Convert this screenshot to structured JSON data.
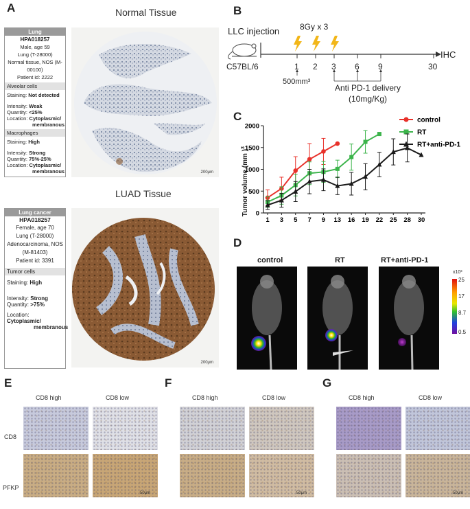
{
  "panels": {
    "a": {
      "letter": "A",
      "normal_title": "Normal Tissue",
      "luad_title": "LUAD Tissue",
      "normal_box": {
        "header": "Lung",
        "antibody": "HPA018257",
        "patient": [
          "Male, age 59",
          "Lung (T-28000)",
          "Normal tissue, NOS (M-",
          "00100)",
          "Patient id: 2222"
        ],
        "section1": "Alveolar cells",
        "staining_label": "Staining:",
        "staining1": "Not detected",
        "intensity_label": "Intensity:",
        "intensity1": "Weak",
        "quantity_label": "Quantity:",
        "quantity1": "<25%",
        "location_label": "Location:",
        "location1a": "Cytoplasmic/",
        "location1b": "membranous",
        "section2": "Macrophages",
        "staining2": "High",
        "intensity2": "Strong",
        "quantity2": "75%-25%",
        "location2a": "Cytoplasmic/",
        "location2b": "membranous"
      },
      "luad_box": {
        "header": "Lung cancer",
        "antibody": "HPA018257",
        "patient": [
          "Female, age 70",
          "Lung (T-28000)",
          "Adenocarcinoma, NOS",
          "(M-81403)",
          "Patient id: 3391"
        ],
        "section": "Tumor cells",
        "staining": "High",
        "intensity": "Strong",
        "quantity": ">75%",
        "location_a": "Cytoplasmic/",
        "location_b": "membranous"
      },
      "scale": "200μm"
    },
    "b": {
      "letter": "B",
      "injection": "LLC injection",
      "strain": "C57BL/6",
      "dose": "8Gy x  3",
      "endpoint": "IHC",
      "tumor_size": "500mm³",
      "delivery_line1": "Anti PD-1 delivery",
      "delivery_line2": "(10mg/Kg)",
      "days": [
        "1",
        "2",
        "3",
        "6",
        "9",
        "30"
      ]
    },
    "c": {
      "letter": "C"
    },
    "d": {
      "letter": "D",
      "groups": [
        "control",
        "RT",
        "RT+anti-PD-1"
      ],
      "colorbar_unit": "x10³",
      "colorbar_ticks": [
        "25",
        "17",
        "8.7",
        "0.5"
      ]
    },
    "efg": {
      "letters": [
        "E",
        "F",
        "G"
      ],
      "col_high": "CD8 high",
      "col_low": "CD8 low",
      "row_cd8": "CD8",
      "row_pfkp": "PFKP",
      "scale": "50μm"
    }
  },
  "chart_data": {
    "type": "line",
    "xlabel": "",
    "ylabel": "Tumor volume  (mm  )",
    "ylabel_superscript": "3",
    "categories": [
      "1",
      "3",
      "5",
      "7",
      "9",
      "13",
      "16",
      "19",
      "22",
      "25",
      "28",
      "30"
    ],
    "ylim": [
      0,
      2000
    ],
    "yticks": [
      0,
      500,
      1000,
      1500,
      2000
    ],
    "legend_position": "top-right",
    "series": [
      {
        "name": "control",
        "color": "#e8312a",
        "marker": "circle",
        "values": [
          350,
          560,
          970,
          1230,
          1410,
          1590,
          null,
          null,
          null,
          null,
          null,
          null
        ],
        "errors": [
          180,
          260,
          320,
          360,
          300,
          0,
          null,
          null,
          null,
          null,
          null,
          null
        ]
      },
      {
        "name": "RT",
        "color": "#3cb44b",
        "marker": "square",
        "values": [
          250,
          400,
          640,
          910,
          940,
          1010,
          1280,
          1630,
          1810,
          null,
          null,
          null
        ],
        "errors": [
          120,
          200,
          250,
          260,
          240,
          200,
          300,
          260,
          0,
          null,
          null,
          null
        ]
      },
      {
        "name": "RT+anti-PD-1",
        "color": "#1a1a1a",
        "marker": "triangle",
        "values": [
          180,
          290,
          490,
          720,
          760,
          620,
          670,
          830,
          1110,
          1400,
          1490,
          1330
        ],
        "errors": [
          100,
          160,
          230,
          280,
          250,
          200,
          260,
          300,
          280,
          300,
          320,
          0
        ]
      }
    ]
  }
}
